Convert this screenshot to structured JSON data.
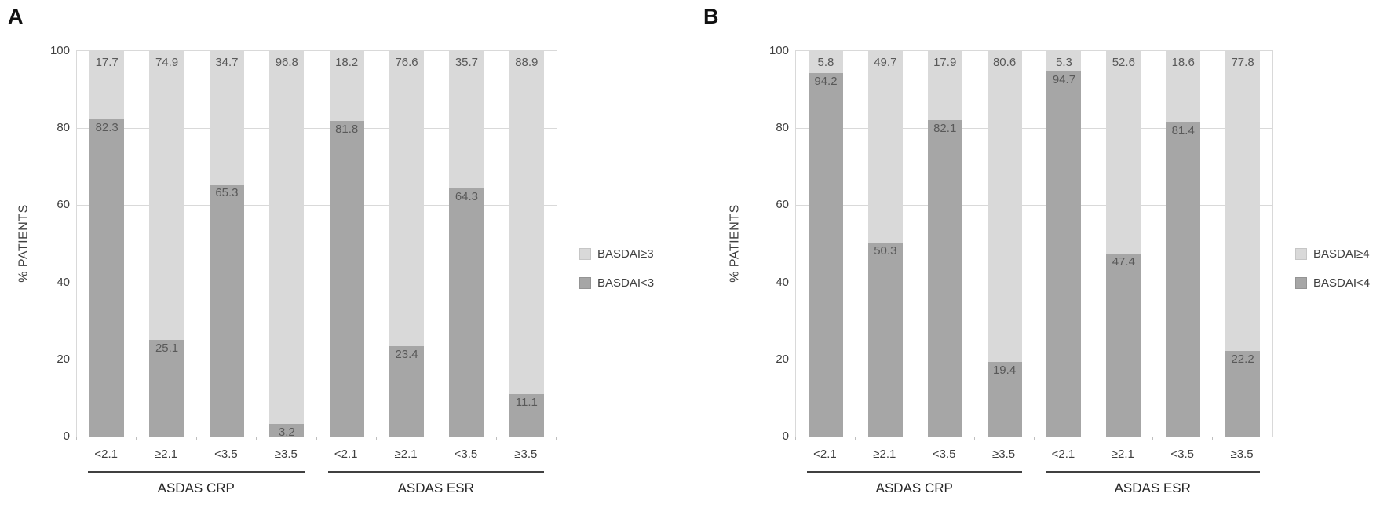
{
  "figure": {
    "panel_a_letter": "A",
    "panel_b_letter": "B"
  },
  "chart_data": [
    {
      "panel_label": "A",
      "type": "bar",
      "stacked": true,
      "ylabel": "% PATIENTS",
      "ylim": [
        0,
        100
      ],
      "yticks": [
        0,
        20,
        40,
        60,
        80,
        100
      ],
      "grid": true,
      "legend_position": "right",
      "categories": [
        "<2.1",
        "≥2.1",
        "<3.5",
        "≥3.5",
        "<2.1",
        "≥2.1",
        "<3.5",
        "≥3.5"
      ],
      "category_groups": [
        {
          "label": "ASDAS CRP",
          "span": [
            0,
            3
          ]
        },
        {
          "label": "ASDAS ESR",
          "span": [
            4,
            7
          ]
        }
      ],
      "series": [
        {
          "name": "BASDAI<3",
          "color": "#a6a6a6",
          "values": [
            82.3,
            25.1,
            65.3,
            3.2,
            81.8,
            23.4,
            64.3,
            11.1
          ]
        },
        {
          "name": "BASDAI≥3",
          "color": "#d9d9d9",
          "values": [
            17.7,
            74.9,
            34.7,
            96.8,
            18.2,
            76.6,
            35.7,
            88.9
          ]
        }
      ],
      "legend": [
        {
          "label": "BASDAI≥3",
          "color": "#d9d9d9"
        },
        {
          "label": "BASDAI<3",
          "color": "#a6a6a6"
        }
      ]
    },
    {
      "panel_label": "B",
      "type": "bar",
      "stacked": true,
      "ylabel": "% PATIENTS",
      "ylim": [
        0,
        100
      ],
      "yticks": [
        0,
        20,
        40,
        60,
        80,
        100
      ],
      "grid": true,
      "legend_position": "right",
      "categories": [
        "<2.1",
        "≥2.1",
        "<3.5",
        "≥3.5",
        "<2.1",
        "≥2.1",
        "<3.5",
        "≥3.5"
      ],
      "category_groups": [
        {
          "label": "ASDAS CRP",
          "span": [
            0,
            3
          ]
        },
        {
          "label": "ASDAS ESR",
          "span": [
            4,
            7
          ]
        }
      ],
      "series": [
        {
          "name": "BASDAI<4",
          "color": "#a6a6a6",
          "values": [
            94.2,
            50.3,
            82.1,
            19.4,
            94.7,
            47.4,
            81.4,
            22.2
          ]
        },
        {
          "name": "BASDAI≥4",
          "color": "#d9d9d9",
          "values": [
            5.8,
            49.7,
            17.9,
            80.6,
            5.3,
            52.6,
            18.6,
            77.8
          ]
        }
      ],
      "legend": [
        {
          "label": "BASDAI≥4",
          "color": "#d9d9d9"
        },
        {
          "label": "BASDAI<4",
          "color": "#a6a6a6"
        }
      ]
    }
  ]
}
